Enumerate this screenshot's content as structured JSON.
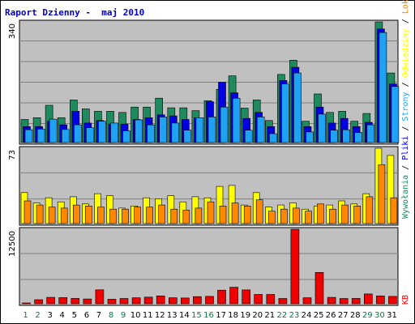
{
  "chart_data": {
    "title": "Raport Dzienny -  maj 2010",
    "type": "bar",
    "categories": [
      "1",
      "2",
      "3",
      "4",
      "5",
      "6",
      "7",
      "8",
      "9",
      "10",
      "11",
      "12",
      "13",
      "14",
      "15",
      "16",
      "17",
      "18",
      "19",
      "20",
      "21",
      "22",
      "23",
      "24",
      "25",
      "26",
      "27",
      "28",
      "29",
      "30",
      "31"
    ],
    "weekend_days": [
      "1",
      "2",
      "8",
      "9",
      "15",
      "16",
      "22",
      "23",
      "29",
      "30"
    ],
    "panels": [
      {
        "name": "top",
        "ymax_label": "340",
        "ylim": [
          0,
          340
        ],
        "series": [
          {
            "name": "Wywołania",
            "color": "#1e8a5e",
            "values": [
              65,
              70,
              105,
              70,
              120,
              95,
              88,
              88,
              85,
              100,
              100,
              125,
              98,
              98,
              90,
              118,
              150,
              188,
              97,
              120,
              62,
              192,
              232,
              60,
              137,
              85,
              88,
              60,
              82,
              340,
              196
            ]
          },
          {
            "name": "Pliki",
            "color": "#0000e0",
            "values": [
              45,
              45,
              60,
              50,
              88,
              55,
              62,
              52,
              52,
              65,
              70,
              78,
              75,
              65,
              70,
              115,
              170,
              140,
              68,
              85,
              45,
              175,
              212,
              45,
              100,
              55,
              68,
              45,
              57,
              320,
              165
            ]
          },
          {
            "name": "Strony",
            "color": "#1fa2f4",
            "values": [
              36,
              38,
              66,
              37,
              50,
              42,
              60,
              55,
              33,
              64,
              50,
              72,
              55,
              35,
              70,
              72,
              100,
              125,
              35,
              72,
              25,
              165,
              196,
              30,
              80,
              35,
              36,
              28,
              50,
              310,
              158
            ]
          }
        ]
      },
      {
        "name": "middle",
        "ymax_label": "73",
        "ylim": [
          0,
          73
        ],
        "series": [
          {
            "name": "Odwiedziny",
            "color": "#ffff00",
            "values": [
              30,
              20,
              25,
              21,
              26,
              19,
              29,
              27,
              15,
              17,
              25,
              24,
              27,
              21,
              26,
              25,
              36,
              37,
              18,
              30,
              16,
              18,
              20,
              14,
              17,
              18,
              22,
              19,
              29,
              73,
              66
            ]
          },
          {
            "name": "Lokalizacje",
            "color": "#ff8800",
            "values": [
              22,
              18,
              16,
              15,
              18,
              17,
              16,
              14,
              14,
              16,
              16,
              18,
              14,
              13,
              15,
              21,
              17,
              20,
              17,
              23,
              12,
              14,
              15,
              12,
              19,
              14,
              18,
              17,
              26,
              57,
              25
            ]
          }
        ]
      },
      {
        "name": "bottom",
        "ymax_label": "12500",
        "ylim": [
          0,
          12500
        ],
        "series": [
          {
            "name": "KB",
            "color": "#ee0000",
            "values": [
              80,
              680,
              1080,
              1030,
              900,
              800,
              2340,
              760,
              880,
              1000,
              1120,
              1320,
              1000,
              960,
              1200,
              1240,
              2280,
              2770,
              2320,
              1560,
              1560,
              880,
              12500,
              1000,
              5260,
              1080,
              880,
              900,
              1640,
              1320,
              1240
            ]
          }
        ]
      }
    ],
    "legend_right": [
      {
        "text": "Wywołania",
        "color": "#1e8a5e"
      },
      {
        "text": " / ",
        "color": "#000000"
      },
      {
        "text": "Pliki",
        "color": "#0000e0"
      },
      {
        "text": " / ",
        "color": "#000000"
      },
      {
        "text": "Strony",
        "color": "#1fa2f4"
      },
      {
        "text": " / ",
        "color": "#000000"
      },
      {
        "text": "Odwiedziny",
        "color": "#ffff00"
      },
      {
        "text": " / ",
        "color": "#000000"
      },
      {
        "text": "Lokalizacje",
        "color": "#ff8800"
      }
    ],
    "legend_bottom_right": {
      "text": "KB",
      "color": "#ee0000"
    },
    "colors": {
      "plot_bg": "#c0c0c0",
      "grid": "#808080",
      "weekday_label": "#000000",
      "weekend_label": "#008040"
    }
  }
}
